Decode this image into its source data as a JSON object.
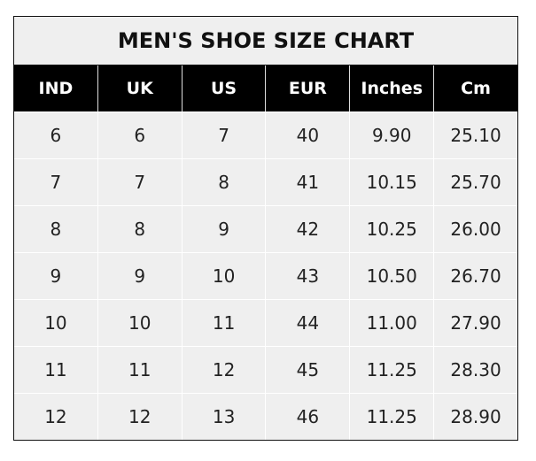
{
  "title": "MEN'S SHOE SIZE CHART",
  "headers": [
    "IND",
    "UK",
    "US",
    "EUR",
    "Inches",
    "Cm"
  ],
  "rows": [
    [
      "6",
      "6",
      "7",
      "40",
      "9.90",
      "25.10"
    ],
    [
      "7",
      "7",
      "8",
      "41",
      "10.15",
      "25.70"
    ],
    [
      "8",
      "8",
      "9",
      "42",
      "10.25",
      "26.00"
    ],
    [
      "9",
      "9",
      "10",
      "43",
      "10.50",
      "26.70"
    ],
    [
      "10",
      "10",
      "11",
      "44",
      "11.00",
      "27.90"
    ],
    [
      "11",
      "11",
      "12",
      "45",
      "11.25",
      "28.30"
    ],
    [
      "12",
      "12",
      "13",
      "46",
      "11.25",
      "28.90"
    ]
  ],
  "colors": {
    "header_bg": "#000000",
    "header_text": "#ffffff",
    "cell_bg": "#efefef"
  }
}
